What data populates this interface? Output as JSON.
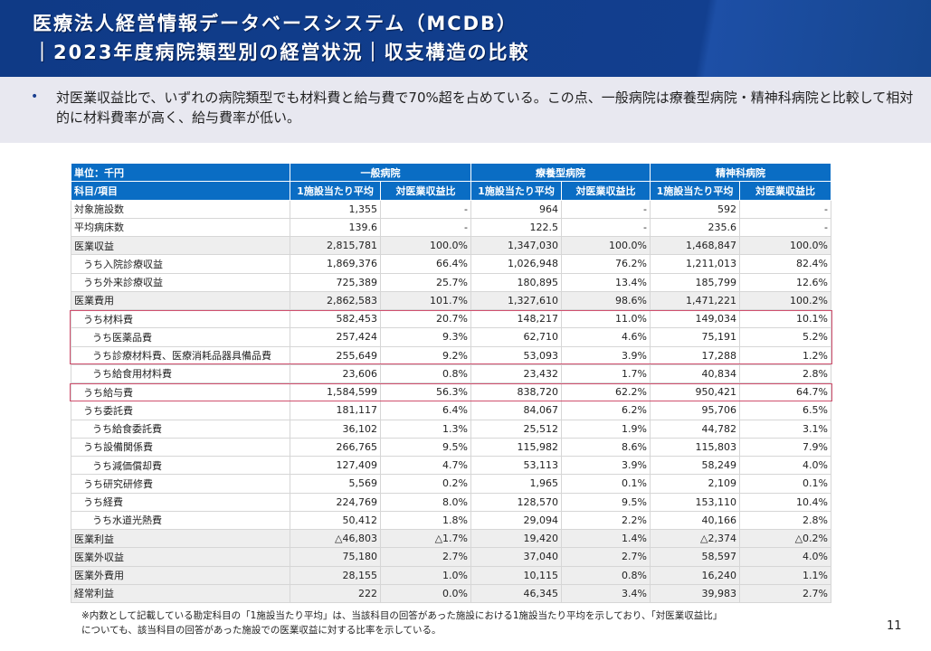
{
  "header": {
    "title_line1": "医療法人経営情報データベースシステム（MCDB）",
    "title_line2": "｜2023年度病院類型別の経営状況｜収支構造の比較"
  },
  "bullet": {
    "text": "対医業収益比で、いずれの病院類型でも材料費と給与費で70%超を占めている。この点、一般病院は療養型病院・精神科病院と比較して相対的に材料費率が高く、給与費率が低い。"
  },
  "table": {
    "unit_label": "単位：千円",
    "groups": [
      "一般病院",
      "療養型病院",
      "精神科病院"
    ],
    "item_label": "科目/項目",
    "subheaders": [
      "1施設当たり平均",
      "対医業収益比"
    ],
    "highlight_color": "#d0506e",
    "header_color": "#0a6dc4",
    "rows": [
      {
        "label": "対象施設数",
        "indent": 0,
        "shaded": false,
        "values": [
          "1,355",
          "-",
          "964",
          "-",
          "592",
          "-"
        ]
      },
      {
        "label": "平均病床数",
        "indent": 0,
        "shaded": false,
        "values": [
          "139.6",
          "-",
          "122.5",
          "-",
          "235.6",
          "-"
        ]
      },
      {
        "label": "医業収益",
        "indent": 0,
        "shaded": true,
        "values": [
          "2,815,781",
          "100.0%",
          "1,347,030",
          "100.0%",
          "1,468,847",
          "100.0%"
        ]
      },
      {
        "label": "うち入院診療収益",
        "indent": 1,
        "shaded": false,
        "values": [
          "1,869,376",
          "66.4%",
          "1,026,948",
          "76.2%",
          "1,211,013",
          "82.4%"
        ]
      },
      {
        "label": "うち外来診療収益",
        "indent": 1,
        "shaded": false,
        "values": [
          "725,389",
          "25.7%",
          "180,895",
          "13.4%",
          "185,799",
          "12.6%"
        ]
      },
      {
        "label": "医業費用",
        "indent": 0,
        "shaded": true,
        "values": [
          "2,862,583",
          "101.7%",
          "1,327,610",
          "98.6%",
          "1,471,221",
          "100.2%"
        ]
      },
      {
        "label": "うち材料費",
        "indent": 1,
        "shaded": false,
        "highlight": "start",
        "values": [
          "582,453",
          "20.7%",
          "148,217",
          "11.0%",
          "149,034",
          "10.1%"
        ]
      },
      {
        "label": "うち医薬品費",
        "indent": 2,
        "shaded": false,
        "values": [
          "257,424",
          "9.3%",
          "62,710",
          "4.6%",
          "75,191",
          "5.2%"
        ]
      },
      {
        "label": "うち診療材料費、医療消耗品器具備品費",
        "indent": 2,
        "shaded": false,
        "highlight": "end",
        "values": [
          "255,649",
          "9.2%",
          "53,093",
          "3.9%",
          "17,288",
          "1.2%"
        ]
      },
      {
        "label": "うち給食用材料費",
        "indent": 2,
        "shaded": false,
        "values": [
          "23,606",
          "0.8%",
          "23,432",
          "1.7%",
          "40,834",
          "2.8%"
        ]
      },
      {
        "label": "うち給与費",
        "indent": 1,
        "shaded": false,
        "highlight": "single",
        "values": [
          "1,584,599",
          "56.3%",
          "838,720",
          "62.2%",
          "950,421",
          "64.7%"
        ]
      },
      {
        "label": "うち委託費",
        "indent": 1,
        "shaded": false,
        "values": [
          "181,117",
          "6.4%",
          "84,067",
          "6.2%",
          "95,706",
          "6.5%"
        ]
      },
      {
        "label": "うち給食委託費",
        "indent": 2,
        "shaded": false,
        "values": [
          "36,102",
          "1.3%",
          "25,512",
          "1.9%",
          "44,782",
          "3.1%"
        ]
      },
      {
        "label": "うち設備関係費",
        "indent": 1,
        "shaded": false,
        "values": [
          "266,765",
          "9.5%",
          "115,982",
          "8.6%",
          "115,803",
          "7.9%"
        ]
      },
      {
        "label": "うち減価償却費",
        "indent": 2,
        "shaded": false,
        "values": [
          "127,409",
          "4.7%",
          "53,113",
          "3.9%",
          "58,249",
          "4.0%"
        ]
      },
      {
        "label": "うち研究研修費",
        "indent": 1,
        "shaded": false,
        "values": [
          "5,569",
          "0.2%",
          "1,965",
          "0.1%",
          "2,109",
          "0.1%"
        ]
      },
      {
        "label": "うち経費",
        "indent": 1,
        "shaded": false,
        "values": [
          "224,769",
          "8.0%",
          "128,570",
          "9.5%",
          "153,110",
          "10.4%"
        ]
      },
      {
        "label": "うち水道光熱費",
        "indent": 2,
        "shaded": false,
        "values": [
          "50,412",
          "1.8%",
          "29,094",
          "2.2%",
          "40,166",
          "2.8%"
        ]
      },
      {
        "label": "医業利益",
        "indent": 0,
        "shaded": true,
        "values": [
          "△46,803",
          "△1.7%",
          "19,420",
          "1.4%",
          "△2,374",
          "△0.2%"
        ]
      },
      {
        "label": "医業外収益",
        "indent": 0,
        "shaded": true,
        "values": [
          "75,180",
          "2.7%",
          "37,040",
          "2.7%",
          "58,597",
          "4.0%"
        ]
      },
      {
        "label": "医業外費用",
        "indent": 0,
        "shaded": true,
        "values": [
          "28,155",
          "1.0%",
          "10,115",
          "0.8%",
          "16,240",
          "1.1%"
        ]
      },
      {
        "label": "経常利益",
        "indent": 0,
        "shaded": true,
        "values": [
          "222",
          "0.0%",
          "46,345",
          "3.4%",
          "39,983",
          "2.7%"
        ]
      }
    ]
  },
  "footnote": {
    "line1": "※内数として記載している勘定科目の「1施設当たり平均」は、当該科目の回答があった施設における1施設当たり平均を示しており、「対医業収益比」",
    "line2": "についても、該当科目の回答があった施設での医業収益に対する比率を示している。"
  },
  "page_number": "11"
}
